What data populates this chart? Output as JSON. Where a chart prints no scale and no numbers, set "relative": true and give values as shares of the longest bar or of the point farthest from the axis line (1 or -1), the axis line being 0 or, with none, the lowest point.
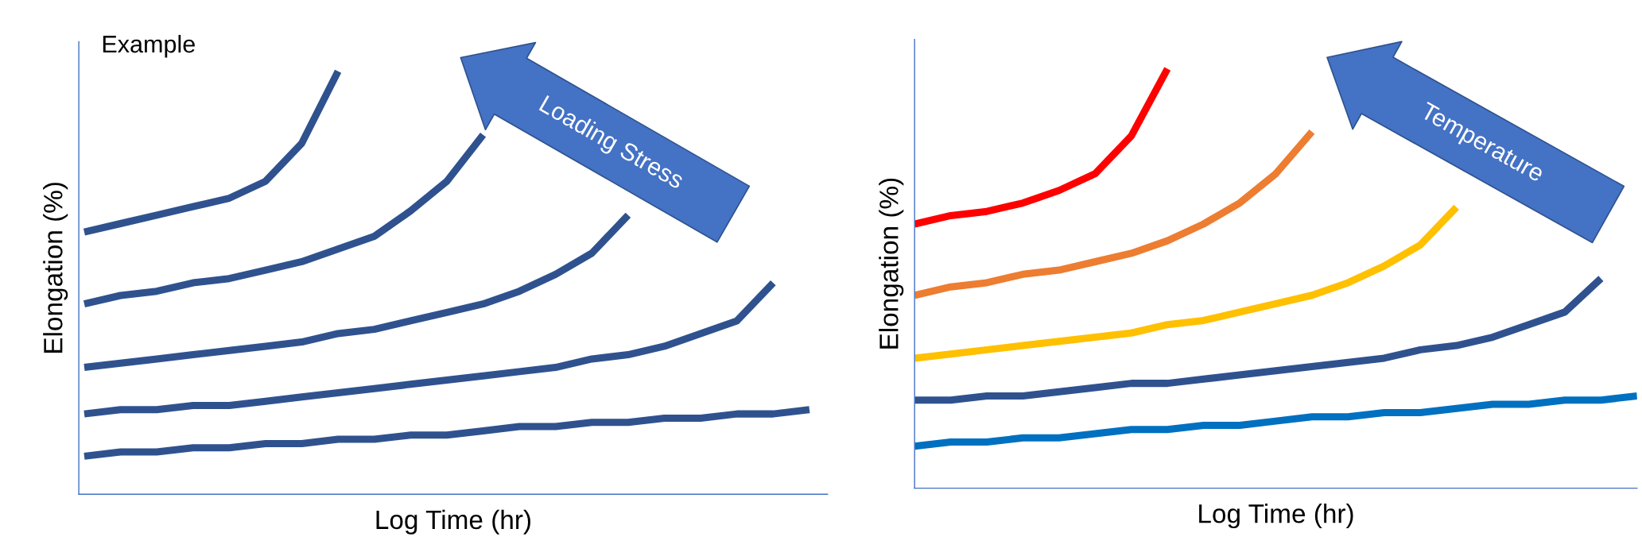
{
  "chart_data": [
    {
      "type": "line",
      "title": "Example",
      "xlabel": "Log Time (hr)",
      "ylabel": "Elongation (%)",
      "relative": true,
      "tick_labels": false,
      "annotations": [
        "Loading Stress"
      ],
      "categories": [
        null,
        null,
        null,
        null,
        null,
        null,
        null,
        null,
        null,
        null,
        null,
        null,
        null,
        null,
        null,
        null,
        null,
        null,
        null,
        null,
        null
      ],
      "series": [
        {
          "color": "#2f528f",
          "values": [
            0.62,
            0.64,
            0.66,
            0.68,
            0.7,
            0.74,
            0.83,
            1.0,
            null,
            null,
            null,
            null,
            null,
            null,
            null,
            null,
            null,
            null,
            null,
            null,
            null
          ]
        },
        {
          "color": "#2f528f",
          "values": [
            0.45,
            0.47,
            0.48,
            0.5,
            0.51,
            0.53,
            0.55,
            0.58,
            0.61,
            0.67,
            0.74,
            0.85,
            null,
            null,
            null,
            null,
            null,
            null,
            null,
            null,
            null
          ]
        },
        {
          "color": "#2f528f",
          "values": [
            0.3,
            0.31,
            0.32,
            0.33,
            0.34,
            0.35,
            0.36,
            0.38,
            0.39,
            0.41,
            0.43,
            0.45,
            0.48,
            0.52,
            0.57,
            0.66,
            null,
            null,
            null,
            null,
            null
          ]
        },
        {
          "color": "#2f528f",
          "values": [
            0.19,
            0.2,
            0.2,
            0.21,
            0.21,
            0.22,
            0.23,
            0.24,
            0.25,
            0.26,
            0.27,
            0.28,
            0.29,
            0.3,
            0.32,
            0.33,
            0.35,
            0.38,
            0.41,
            0.5,
            null
          ]
        },
        {
          "color": "#2f528f",
          "values": [
            0.09,
            0.1,
            0.1,
            0.11,
            0.11,
            0.12,
            0.12,
            0.13,
            0.13,
            0.14,
            0.14,
            0.15,
            0.16,
            0.16,
            0.17,
            0.17,
            0.18,
            0.18,
            0.19,
            0.19,
            0.2
          ]
        }
      ]
    },
    {
      "type": "line",
      "xlabel": "Log Time (hr)",
      "ylabel": "Elongation (%)",
      "relative": true,
      "tick_labels": false,
      "annotations": [
        "Temperature"
      ],
      "categories": [
        null,
        null,
        null,
        null,
        null,
        null,
        null,
        null,
        null,
        null,
        null,
        null,
        null,
        null,
        null,
        null,
        null,
        null,
        null,
        null,
        null
      ],
      "series": [
        {
          "color": "#ff0000",
          "values": [
            0.63,
            0.65,
            0.66,
            0.68,
            0.71,
            0.75,
            0.84,
            1.0,
            null,
            null,
            null,
            null,
            null,
            null,
            null,
            null,
            null,
            null,
            null,
            null,
            null
          ]
        },
        {
          "color": "#ed7d31",
          "values": [
            0.46,
            0.48,
            0.49,
            0.51,
            0.52,
            0.54,
            0.56,
            0.59,
            0.63,
            0.68,
            0.75,
            0.85,
            null,
            null,
            null,
            null,
            null,
            null,
            null,
            null,
            null
          ]
        },
        {
          "color": "#ffc000",
          "values": [
            0.31,
            0.32,
            0.33,
            0.34,
            0.35,
            0.36,
            0.37,
            0.39,
            0.4,
            0.42,
            0.44,
            0.46,
            0.49,
            0.53,
            0.58,
            0.67,
            null,
            null,
            null,
            null,
            null
          ]
        },
        {
          "color": "#2f528f",
          "values": [
            0.21,
            0.21,
            0.22,
            0.22,
            0.23,
            0.24,
            0.25,
            0.25,
            0.26,
            0.27,
            0.28,
            0.29,
            0.3,
            0.31,
            0.33,
            0.34,
            0.36,
            0.39,
            0.42,
            0.5,
            null
          ]
        },
        {
          "color": "#0070c0",
          "values": [
            0.1,
            0.11,
            0.11,
            0.12,
            0.12,
            0.13,
            0.14,
            0.14,
            0.15,
            0.15,
            0.16,
            0.17,
            0.17,
            0.18,
            0.18,
            0.19,
            0.2,
            0.2,
            0.21,
            0.21,
            0.22
          ]
        }
      ]
    }
  ]
}
